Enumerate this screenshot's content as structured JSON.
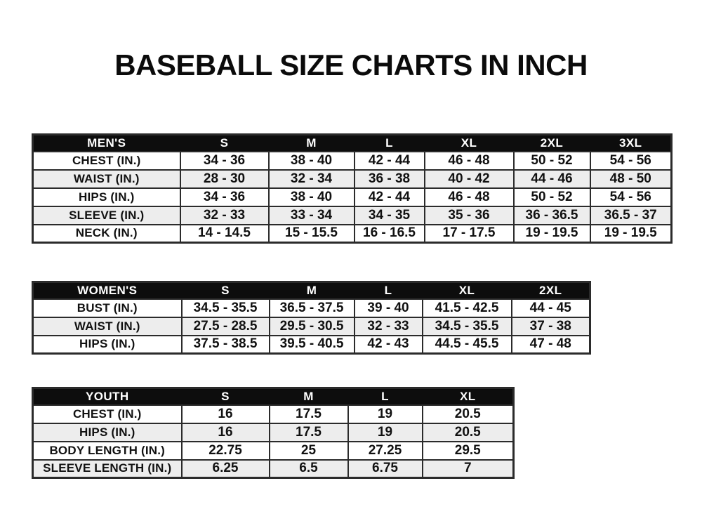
{
  "title": "BASEBALL SIZE CHARTS IN INCH",
  "colors": {
    "page_bg": "#ffffff",
    "header_bg": "#0d0d0d",
    "header_text": "#ffffff",
    "row_bg": "#ffffff",
    "row_alt_bg": "#ededed",
    "border": "#2b2b2b",
    "text": "#111111"
  },
  "tables": [
    {
      "id": "mens",
      "columns": [
        "MEN'S",
        "S",
        "M",
        "L",
        "XL",
        "2XL",
        "3XL"
      ],
      "rows": [
        {
          "label": "CHEST (IN.)",
          "values": [
            "34 - 36",
            "38 - 40",
            "42 - 44",
            "46 - 48",
            "50 - 52",
            "54 - 56"
          ]
        },
        {
          "label": "WAIST (IN.)",
          "values": [
            "28 - 30",
            "32 - 34",
            "36 - 38",
            "40 - 42",
            "44 - 46",
            "48 - 50"
          ]
        },
        {
          "label": "HIPS (IN.)",
          "values": [
            "34 - 36",
            "38 - 40",
            "42 - 44",
            "46 - 48",
            "50 - 52",
            "54 - 56"
          ]
        },
        {
          "label": "SLEEVE (IN.)",
          "values": [
            "32 - 33",
            "33 - 34",
            "34 - 35",
            "35 - 36",
            "36 - 36.5",
            "36.5 - 37"
          ]
        },
        {
          "label": "NECK (IN.)",
          "values": [
            "14 - 14.5",
            "15 - 15.5",
            "16 - 16.5",
            "17 - 17.5",
            "19 - 19.5",
            "19 - 19.5"
          ]
        }
      ]
    },
    {
      "id": "womens",
      "columns": [
        "WOMEN'S",
        "S",
        "M",
        "L",
        "XL",
        "2XL"
      ],
      "rows": [
        {
          "label": "BUST (IN.)",
          "values": [
            "34.5 - 35.5",
            "36.5 - 37.5",
            "39 - 40",
            "41.5 - 42.5",
            "44 - 45"
          ]
        },
        {
          "label": "WAIST (IN.)",
          "values": [
            "27.5 - 28.5",
            "29.5 - 30.5",
            "32 - 33",
            "34.5 - 35.5",
            "37 - 38"
          ]
        },
        {
          "label": "HIPS (IN.)",
          "values": [
            "37.5 - 38.5",
            "39.5 - 40.5",
            "42 - 43",
            "44.5 - 45.5",
            "47 - 48"
          ]
        }
      ]
    },
    {
      "id": "youth",
      "columns": [
        "YOUTH",
        "S",
        "M",
        "L",
        "XL"
      ],
      "rows": [
        {
          "label": "CHEST (IN.)",
          "values": [
            "16",
            "17.5",
            "19",
            "20.5"
          ]
        },
        {
          "label": "HIPS (IN.)",
          "values": [
            "16",
            "17.5",
            "19",
            "20.5"
          ]
        },
        {
          "label": "BODY LENGTH (IN.)",
          "values": [
            "22.75",
            "25",
            "27.25",
            "29.5"
          ]
        },
        {
          "label": "SLEEVE LENGTH (IN.)",
          "values": [
            "6.25",
            "6.5",
            "6.75",
            "7"
          ]
        }
      ]
    }
  ]
}
